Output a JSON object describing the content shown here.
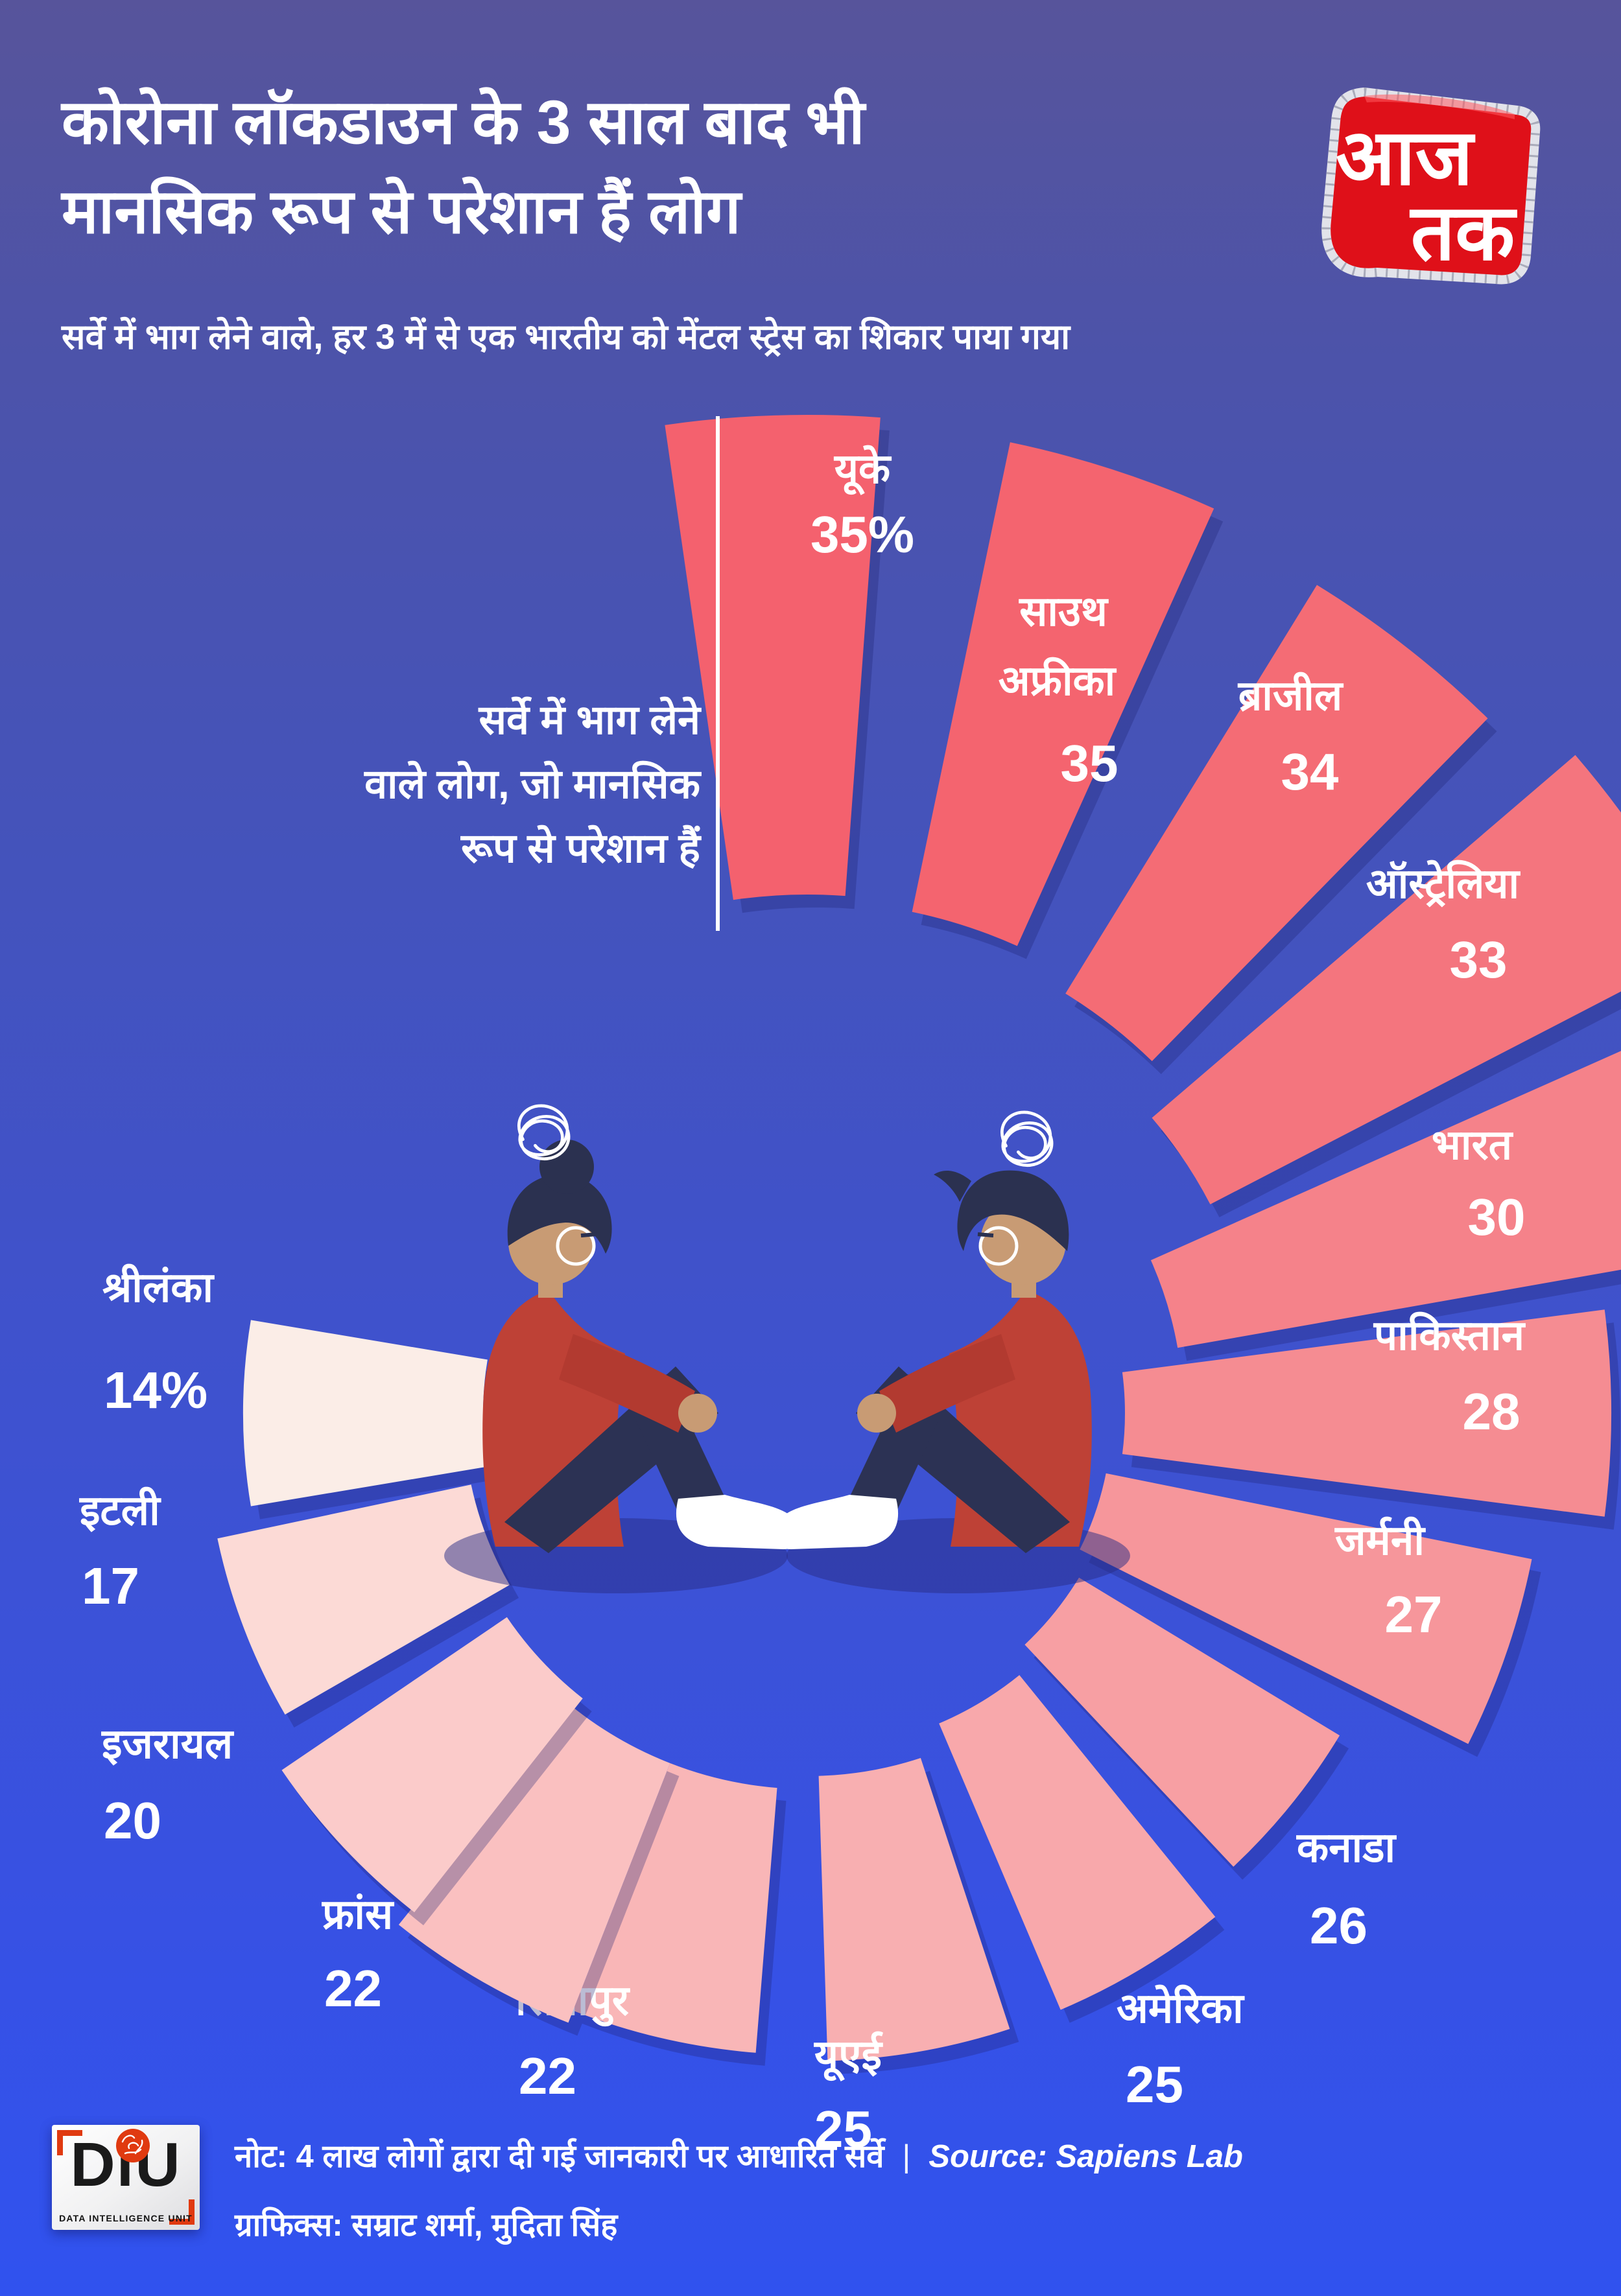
{
  "header": {
    "title_line1": "कोरोना लॉकडाउन के 3 साल बाद भी",
    "title_line2": "मानसिक रूप से परेशान हैं लोग",
    "subtitle": "सर्वे में भाग लेने वाले, हर 3 में से एक भारतीय को मेंटल स्ट्रेस का शिकार पाया गया"
  },
  "brand": {
    "channel_line1": "आज",
    "channel_line2": "तक",
    "diu_letters": "DiU",
    "diu_caption": "DATA INTELLIGENCE UNIT"
  },
  "annotation": {
    "line1": "सर्वे में भाग लेने",
    "line2": "वाले लोग, जो मानसिक",
    "line3": "रूप से परेशान हैं"
  },
  "footer": {
    "note": "नोट: 4 लाख लोगों द्वारा दी गई जानकारी पर आधारित सर्वे",
    "separator": "|",
    "source": "Source: Sapiens Lab",
    "credits": "ग्राफिक्स: सम्राट शर्मा, मुदिता सिंह"
  },
  "chart_data": {
    "type": "radial_bar",
    "title": "सर्वे में भाग लेने वाले लोग, जो मानसिक रूप से परेशान हैं",
    "unit": "%",
    "legend_position": "none",
    "grid": false,
    "center": [
      1245,
      2180
    ],
    "shadow_color": "#1d2170",
    "categories": [
      "यूके",
      "साउथ अफ्रीका",
      "ब्राजील",
      "ऑस्ट्रेलिया",
      "भारत",
      "पाकिस्तान",
      "जर्मनी",
      "कनाडा",
      "अमेरिका",
      "यूएई",
      "सिंगापुर",
      "फ्रांस",
      "इजरायल",
      "इटली",
      "श्रीलंका"
    ],
    "values": [
      35,
      35,
      34,
      33,
      30,
      28,
      27,
      26,
      25,
      25,
      22,
      22,
      20,
      17,
      14
    ],
    "series": [
      {
        "name": "यूके",
        "value": 35,
        "display": "35%",
        "color": "#F4616E",
        "angle": -2,
        "hw": 6.2,
        "inner": 800,
        "outer": 1540,
        "anchor": "middle",
        "labels": [
          {
            "t": "यूके",
            "x": 1330,
            "y": 745,
            "s": 64
          },
          {
            "t": "35%",
            "x": 1330,
            "y": 852,
            "s": 80
          }
        ]
      },
      {
        "name": "साउथ अफ्रीका",
        "value": 35,
        "display": "35",
        "color": "#F4646F",
        "angle": 18,
        "hw": 6.2,
        "inner": 790,
        "outer": 1530,
        "anchor": "middle",
        "labels": [
          {
            "t": "साउथ",
            "x": 1640,
            "y": 965,
            "s": 64
          },
          {
            "t": "अफ्रीका",
            "x": 1630,
            "y": 1072,
            "s": 64
          },
          {
            "t": "35",
            "x": 1680,
            "y": 1205,
            "s": 80
          }
        ]
      },
      {
        "name": "ब्राजील",
        "value": 34,
        "display": "34",
        "color": "#F46C75",
        "angle": 38,
        "hw": 6.4,
        "inner": 760,
        "outer": 1500,
        "anchor": "middle",
        "labels": [
          {
            "t": "ब्राजील",
            "x": 1990,
            "y": 1095,
            "s": 64
          },
          {
            "t": "34",
            "x": 2020,
            "y": 1218,
            "s": 80
          }
        ]
      },
      {
        "name": "ऑस्ट्रेलिया",
        "value": 33,
        "display": "33",
        "color": "#F4757E",
        "angle": 56,
        "hw": 6.6,
        "inner": 700,
        "outer": 1560,
        "anchor": "middle",
        "labels": [
          {
            "t": "ऑस्ट्रेलिया",
            "x": 2225,
            "y": 1385,
            "s": 64
          },
          {
            "t": "33",
            "x": 2280,
            "y": 1508,
            "s": 80
          }
        ]
      },
      {
        "name": "भारत",
        "value": 30,
        "display": "30",
        "color": "#F5828A",
        "angle": 73,
        "hw": 7.0,
        "inner": 580,
        "outer": 1430,
        "anchor": "middle",
        "labels": [
          {
            "t": "भारत",
            "x": 2270,
            "y": 1788,
            "s": 64
          },
          {
            "t": "30",
            "x": 2308,
            "y": 1905,
            "s": 80
          }
        ]
      },
      {
        "name": "पाकिस्तान",
        "value": 28,
        "display": "28",
        "color": "#F58C92",
        "angle": 90,
        "hw": 7.4,
        "inner": 490,
        "outer": 1240,
        "anchor": "middle",
        "labels": [
          {
            "t": "पाकिस्तान",
            "x": 2235,
            "y": 2082,
            "s": 64
          },
          {
            "t": "28",
            "x": 2300,
            "y": 2205,
            "s": 80
          }
        ]
      },
      {
        "name": "जर्मनी",
        "value": 27,
        "display": "27",
        "color": "#F6969B",
        "angle": 109,
        "hw": 7.6,
        "inner": 470,
        "outer": 1140,
        "anchor": "middle",
        "labels": [
          {
            "t": "जर्मनी",
            "x": 2128,
            "y": 2398,
            "s": 64
          },
          {
            "t": "27",
            "x": 2180,
            "y": 2518,
            "s": 80
          }
        ]
      },
      {
        "name": "कनाडा",
        "value": 26,
        "display": "26",
        "color": "#F79FA3",
        "angle": 129,
        "hw": 7.8,
        "inner": 490,
        "outer": 960,
        "anchor": "start",
        "labels": [
          {
            "t": "कनाडा",
            "x": 2000,
            "y": 2872,
            "s": 64
          },
          {
            "t": "26",
            "x": 2020,
            "y": 2998,
            "s": 80
          }
        ]
      },
      {
        "name": "अमेरिका",
        "value": 25,
        "display": "25",
        "color": "#F8A8AB",
        "angle": 149,
        "hw": 8.0,
        "inner": 520,
        "outer": 1000,
        "anchor": "start",
        "labels": [
          {
            "t": "अमेरिका",
            "x": 1722,
            "y": 3120,
            "s": 64
          },
          {
            "t": "25",
            "x": 1736,
            "y": 3243,
            "s": 80
          }
        ]
      },
      {
        "name": "यूएई",
        "value": 25,
        "display": "25",
        "color": "#F8AFB1",
        "angle": 170,
        "hw": 8.2,
        "inner": 560,
        "outer": 1000,
        "anchor": "start",
        "labels": [
          {
            "t": "यूएई",
            "x": 1256,
            "y": 3192,
            "s": 64
          },
          {
            "t": "25",
            "x": 1256,
            "y": 3312,
            "s": 80
          }
        ]
      },
      {
        "name": "सिंगापुर",
        "value": 22,
        "display": "22",
        "color": "#F9B6B7",
        "angle": 193,
        "hw": 8.4,
        "inner": 580,
        "outer": 990,
        "anchor": "start",
        "labels": [
          {
            "t": "सिंगापुर",
            "x": 795,
            "y": 3108,
            "s": 64
          },
          {
            "t": "22",
            "x": 800,
            "y": 3230,
            "s": 80
          }
        ]
      },
      {
        "name": "फ्रांस",
        "value": 22,
        "display": "22",
        "color": "#FAC0C0",
        "angle": 210,
        "hw": 8.6,
        "inner": 580,
        "outer": 1010,
        "anchor": "start",
        "labels": [
          {
            "t": "फ्रांस",
            "x": 497,
            "y": 2975,
            "s": 64
          },
          {
            "t": "22",
            "x": 500,
            "y": 3095,
            "s": 80
          }
        ]
      },
      {
        "name": "इजरायल",
        "value": 20,
        "display": "20",
        "color": "#FBCBCA",
        "angle": 227,
        "hw": 8.8,
        "inner": 560,
        "outer": 980,
        "anchor": "start",
        "labels": [
          {
            "t": "इजरायल",
            "x": 157,
            "y": 2712,
            "s": 64
          },
          {
            "t": "20",
            "x": 160,
            "y": 2836,
            "s": 80
          }
        ]
      },
      {
        "name": "इटली",
        "value": 17,
        "display": "17",
        "color": "#FCDAD6",
        "angle": 249,
        "hw": 9.0,
        "inner": 530,
        "outer": 930,
        "anchor": "start",
        "labels": [
          {
            "t": "इटली",
            "x": 123,
            "y": 2352,
            "s": 64
          },
          {
            "t": "17",
            "x": 126,
            "y": 2474,
            "s": 80
          }
        ]
      },
      {
        "name": "श्रीलंका",
        "value": 14,
        "display": "14%",
        "color": "#FBEDE7",
        "angle": 270,
        "hw": 9.5,
        "inner": 500,
        "outer": 870,
        "anchor": "start",
        "labels": [
          {
            "t": "श्रीलंका",
            "x": 158,
            "y": 2008,
            "s": 64
          },
          {
            "t": "14%",
            "x": 160,
            "y": 2172,
            "s": 80
          }
        ]
      }
    ]
  }
}
